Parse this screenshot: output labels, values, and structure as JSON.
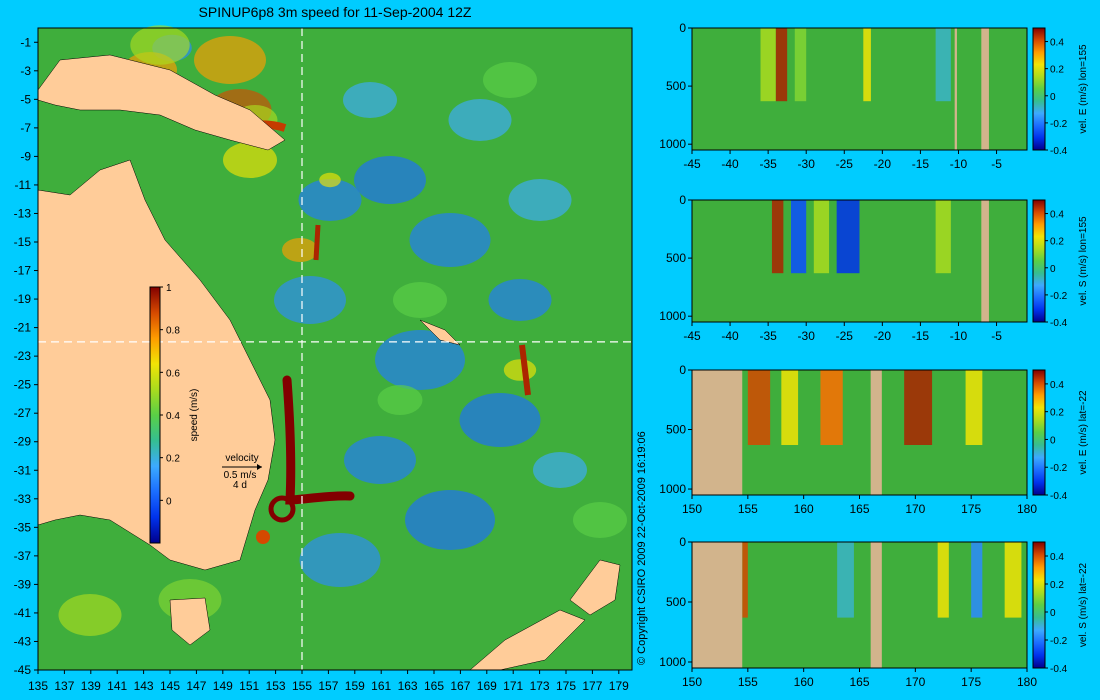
{
  "title": "SPINUP6p8 3m speed for 11-Sep-2004 12Z",
  "copyright": "© Copyright CSIRO 2009  22-Oct-2009 16:19:06",
  "colors": {
    "background": "#00ccff",
    "land": "#ffcc99",
    "section_land": "#d2b48c",
    "ocean": "#3fae3c"
  },
  "chart_data": [
    {
      "type": "heatmap",
      "name": "map",
      "title": "SPINUP6p8 3m speed for 11-Sep-2004 12Z",
      "x_ticks": [
        "135",
        "137",
        "139",
        "141",
        "143",
        "145",
        "147",
        "149",
        "151",
        "153",
        "155",
        "157",
        "159",
        "161",
        "163",
        "165",
        "167",
        "169",
        "171",
        "173",
        "175",
        "177",
        "179"
      ],
      "y_ticks": [
        "-1",
        "-3",
        "-5",
        "-7",
        "-9",
        "-11",
        "-13",
        "-15",
        "-17",
        "-19",
        "-21",
        "-23",
        "-25",
        "-27",
        "-29",
        "-31",
        "-33",
        "-35",
        "-37",
        "-39",
        "-41",
        "-43",
        "-45"
      ],
      "xlim": [
        135,
        180
      ],
      "ylim": [
        -45,
        0
      ],
      "section_lon": 155,
      "section_lat": -22,
      "colorbar": {
        "label": "speed (m/s)",
        "ticks": [
          "1",
          "0.8",
          "0.6",
          "0.4",
          "0.2",
          "0"
        ],
        "range": [
          -0.2,
          1
        ]
      },
      "vector_legend": {
        "label": "velocity",
        "speed": "0.5 m/s",
        "duration": "4 d"
      }
    },
    {
      "type": "heatmap",
      "name": "section-1",
      "x_ticks": [
        "-45",
        "-40",
        "-35",
        "-30",
        "-25",
        "-20",
        "-15",
        "-10",
        "-5"
      ],
      "xlim": [
        -45,
        -1
      ],
      "y_ticks": [
        "0",
        "500",
        "1000"
      ],
      "ylim": [
        0,
        1050
      ],
      "colorbar": {
        "label": "vel. E (m/s) lon=155",
        "ticks": [
          "0.4",
          "0.2",
          "0",
          "-0.2",
          "-0.4"
        ],
        "range": [
          -0.4,
          0.5
        ]
      }
    },
    {
      "type": "heatmap",
      "name": "section-2",
      "x_ticks": [
        "-45",
        "-40",
        "-35",
        "-30",
        "-25",
        "-20",
        "-15",
        "-10",
        "-5"
      ],
      "xlim": [
        -45,
        -1
      ],
      "y_ticks": [
        "0",
        "500",
        "1000"
      ],
      "ylim": [
        0,
        1050
      ],
      "colorbar": {
        "label": "vel. S (m/s) lon=155",
        "ticks": [
          "0.4",
          "0.2",
          "0",
          "-0.2",
          "-0.4"
        ],
        "range": [
          -0.4,
          0.5
        ]
      }
    },
    {
      "type": "heatmap",
      "name": "section-3",
      "x_ticks": [
        "150",
        "155",
        "160",
        "165",
        "170",
        "175",
        "180"
      ],
      "xlim": [
        150,
        180
      ],
      "y_ticks": [
        "0",
        "500",
        "1000"
      ],
      "ylim": [
        0,
        1050
      ],
      "colorbar": {
        "label": "vel. E (m/s) lat=-22",
        "ticks": [
          "0.4",
          "0.2",
          "0",
          "-0.2",
          "-0.4"
        ],
        "range": [
          -0.4,
          0.5
        ]
      }
    },
    {
      "type": "heatmap",
      "name": "section-4",
      "x_ticks": [
        "150",
        "155",
        "160",
        "165",
        "170",
        "175",
        "180"
      ],
      "xlim": [
        150,
        180
      ],
      "y_ticks": [
        "0",
        "500",
        "1000"
      ],
      "ylim": [
        0,
        1050
      ],
      "colorbar": {
        "label": "vel. S (m/s) lat=-22",
        "ticks": [
          "0.4",
          "0.2",
          "0",
          "-0.2",
          "-0.4"
        ],
        "range": [
          -0.4,
          0.5
        ]
      }
    }
  ]
}
